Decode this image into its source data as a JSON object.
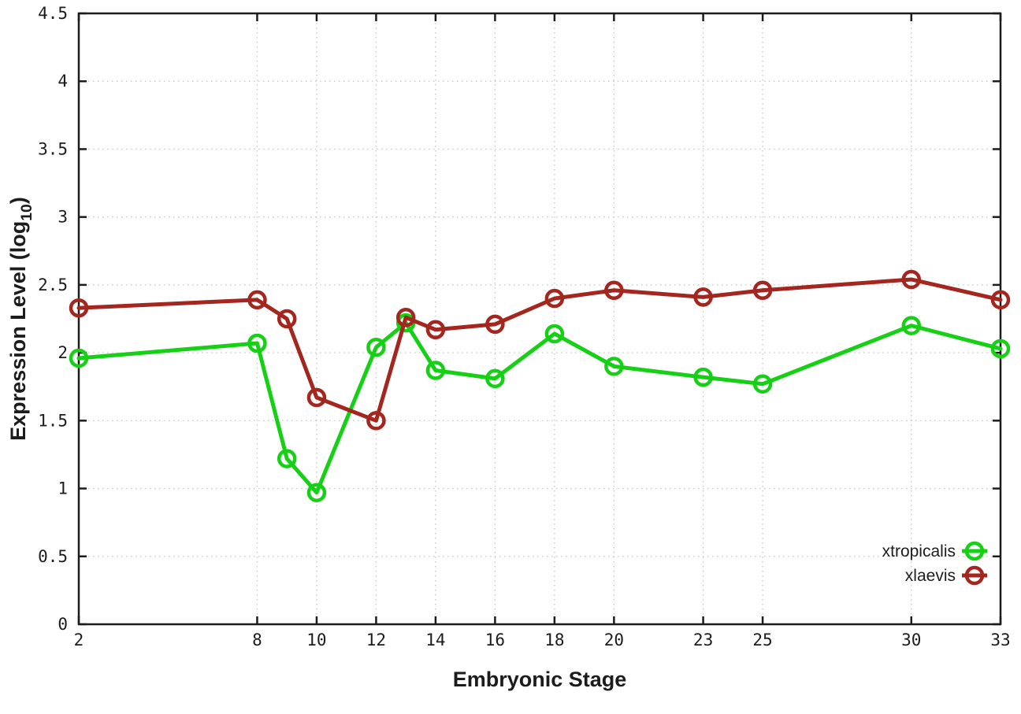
{
  "chart_data": {
    "type": "line",
    "title": "",
    "x": [
      2,
      8,
      9,
      10,
      12,
      13,
      14,
      16,
      18,
      20,
      23,
      25,
      30,
      33
    ],
    "series": [
      {
        "name": "xtropicalis",
        "color": "#15D015",
        "marker": "open-circle",
        "values": [
          1.96,
          2.07,
          1.22,
          0.97,
          2.04,
          2.22,
          1.87,
          1.81,
          2.14,
          1.9,
          1.82,
          1.77,
          2.2,
          2.03
        ]
      },
      {
        "name": "xlaevis",
        "color": "#A3261F",
        "marker": "open-circle",
        "values": [
          2.33,
          2.39,
          2.25,
          1.67,
          1.5,
          2.26,
          2.17,
          2.21,
          2.4,
          2.46,
          2.41,
          2.46,
          2.54,
          2.39
        ]
      }
    ],
    "xlabel": "Embryonic Stage",
    "ylabel": "Expression Level (log10)",
    "ylabel_rich": [
      {
        "text": "Expression Level (log"
      },
      {
        "text": "10",
        "subscript": true
      },
      {
        "text": ")"
      }
    ],
    "xlim": [
      2,
      33
    ],
    "ylim": [
      0,
      4.5
    ],
    "x_ticks": {
      "values": [
        2,
        8,
        10,
        12,
        14,
        16,
        18,
        20,
        23,
        25,
        30,
        33
      ],
      "labels": [
        "2",
        "8",
        "10",
        "12",
        "14",
        "16",
        "18",
        "20",
        "23",
        "25",
        "30",
        "33"
      ]
    },
    "y_ticks": {
      "values": [
        0,
        0.5,
        1,
        1.5,
        2,
        2.5,
        3,
        3.5,
        4,
        4.5
      ],
      "labels": [
        "0",
        "0.5",
        "1",
        "1.5",
        "2",
        "2.5",
        "3",
        "3.5",
        "4",
        "4.5"
      ]
    },
    "grid": "dotted-major-both-axes",
    "legend": {
      "position": "inside-lower-right",
      "entries": [
        "xtropicalis",
        "xlaevis"
      ]
    },
    "colors": {
      "axis": "#1c1c1c",
      "grid": "#c9c9c9",
      "background": "#ffffff"
    }
  }
}
